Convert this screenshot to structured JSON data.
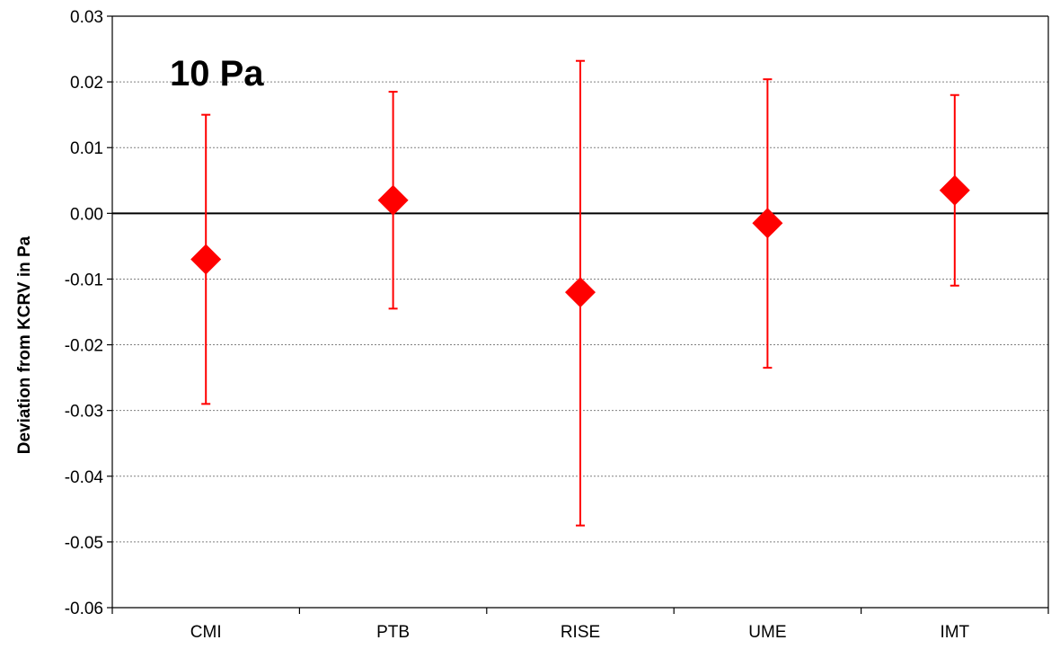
{
  "chart_data": {
    "type": "scatter",
    "categories": [
      "CMI",
      "PTB",
      "RISE",
      "UME",
      "IMT"
    ],
    "values": [
      -0.007,
      0.002,
      -0.012,
      -0.0015,
      0.0035
    ],
    "error_upper": [
      0.015,
      0.0185,
      0.0232,
      0.0204,
      0.018
    ],
    "error_lower": [
      -0.029,
      -0.0145,
      -0.0475,
      -0.0235,
      -0.011
    ],
    "title": "",
    "annotation": "10 Pa",
    "xlabel": "",
    "ylabel": "Deviation from KCRV in Pa",
    "ylim": [
      -0.06,
      0.03
    ],
    "yticks": [
      "-0.06",
      "-0.05",
      "-0.04",
      "-0.03",
      "-0.02",
      "-0.01",
      "0.00",
      "0.01",
      "0.02",
      "0.03"
    ],
    "grid": true,
    "zero_line": true,
    "marker": "diamond",
    "color": "#ff0000",
    "legend": "none"
  }
}
